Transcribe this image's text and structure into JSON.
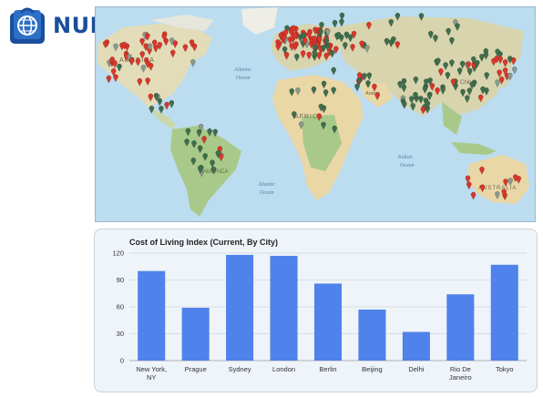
{
  "logo": {
    "text": "NUMBEO",
    "brand_color": "#1a4f9c"
  },
  "map": {
    "labels": {
      "north_america": "AMERICA",
      "atlantic": "Atlantic",
      "atlantic_ocean": "Ocean",
      "africa": "AFRICA",
      "south_america": "AMERICA",
      "south_atlantic": "Atlantic",
      "south_ocean": "Ocean",
      "indian": "Indian",
      "indian_ocean": "Ocean",
      "australia": "AUSTRALIA",
      "china": "China",
      "arabia": "Arabia"
    },
    "colors": {
      "ocean": "#bcdcf0",
      "land": "#e3dcb8",
      "forest": "#a9c98a",
      "desert": "#e9d7a6",
      "pin_red": "#d9372b",
      "pin_green": "#3f6e4c",
      "pin_gray": "#8a9a8c"
    }
  },
  "chart_data": {
    "type": "bar",
    "title": "Cost of Living Index (Current, By City)",
    "categories": [
      [
        "New York,",
        "NY"
      ],
      [
        "Prague"
      ],
      [
        "Sydney"
      ],
      [
        "London"
      ],
      [
        "Berlin"
      ],
      [
        "Beijing"
      ],
      [
        "Delhi"
      ],
      [
        "Rio De",
        "Janeiro"
      ],
      [
        "Tokyo"
      ]
    ],
    "values": [
      100,
      59,
      118,
      117,
      86,
      57,
      32,
      74,
      107
    ],
    "yticks": [
      "0",
      "30",
      "60",
      "90",
      "120"
    ],
    "ylim": [
      0,
      120
    ],
    "bar_color": "#4f82ea",
    "grid": true
  }
}
